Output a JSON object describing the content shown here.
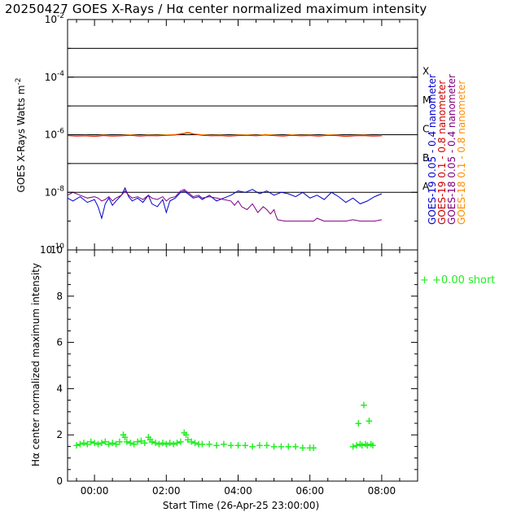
{
  "title": "20250427 GOES X-Rays / Hα center normalized maximum intensity",
  "chart_data": [
    {
      "type": "line",
      "panel": "goes",
      "ylabel": "GOES X-Rays Watts m",
      "ylabel_sup": "-2",
      "yscale": "log",
      "ylim_exp": [
        -10,
        -2
      ],
      "ytick_exponents": [
        -2,
        -4,
        -6,
        -8,
        -10
      ],
      "ytick_base": "10",
      "xlim_hours": [
        -0.75,
        9.0
      ],
      "class_lines_exp": [
        -3,
        -4,
        -5,
        -6,
        -7,
        -8
      ],
      "class_labels": [
        {
          "label": "X",
          "exp": -3.8
        },
        {
          "label": "M",
          "exp": -4.8
        },
        {
          "label": "C",
          "exp": -5.8
        },
        {
          "label": "B",
          "exp": -6.8
        },
        {
          "label": "A",
          "exp": -7.8
        }
      ],
      "legend": [
        {
          "text": "GOES-19 0.05 - 0.4 nanometer",
          "color": "#0000cc"
        },
        {
          "text": "GOES-19 0.1 - 0.8 nanometer",
          "color": "#cc0000"
        },
        {
          "text": "GOES-18 0.05 - 0.4 nanometer",
          "color": "#800080"
        },
        {
          "text": "GOES-18 0.1 - 0.8 nanometer",
          "color": "#ff8c00"
        }
      ],
      "series": [
        {
          "name": "GOES-19 0.1 - 0.8 nanometer",
          "color": "#cc0000",
          "x": [
            -0.75,
            -0.5,
            -0.25,
            0,
            0.25,
            0.5,
            0.75,
            1,
            1.25,
            1.5,
            1.75,
            2,
            2.25,
            2.5,
            2.6,
            2.75,
            3,
            3.25,
            3.5,
            3.75,
            4,
            4.25,
            4.5,
            4.75,
            5,
            5.25,
            5.5,
            5.75,
            6,
            6.25,
            6.5,
            6.75,
            7,
            7.25,
            7.5,
            7.75,
            8
          ],
          "y_exp": [
            -6.03,
            -6.05,
            -6.04,
            -6.06,
            -6.03,
            -6.05,
            -6.04,
            -6.02,
            -6.05,
            -6.03,
            -6.04,
            -6.02,
            -6.01,
            -5.96,
            -5.93,
            -5.98,
            -6.02,
            -6.04,
            -6.03,
            -6.05,
            -6.03,
            -6.02,
            -6.04,
            -6.01,
            -6.03,
            -6.05,
            -6.02,
            -6.04,
            -6.03,
            -6.05,
            -6.02,
            -6.03,
            -6.06,
            -6.04,
            -6.03,
            -6.05,
            -6.04
          ]
        },
        {
          "name": "GOES-18 0.1 - 0.8 nanometer",
          "color": "#ff8c00",
          "x": [
            -0.75,
            -0.5,
            -0.25,
            0,
            0.25,
            0.5,
            0.75,
            1,
            1.25,
            1.5,
            1.75,
            2,
            2.25,
            2.5,
            2.6,
            2.75,
            3,
            3.25,
            3.5,
            3.75,
            4,
            4.25,
            4.5,
            4.75,
            5,
            5.25,
            5.5,
            5.75,
            6,
            6.25,
            6.5,
            6.75,
            7,
            7.25,
            7.5,
            7.75,
            8
          ],
          "y_exp": [
            -6.01,
            -6.03,
            -6.02,
            -6.04,
            -6.01,
            -6.03,
            -6.02,
            -6.0,
            -6.03,
            -6.01,
            -6.02,
            -6.0,
            -5.99,
            -5.94,
            -5.91,
            -5.96,
            -6.0,
            -6.02,
            -6.01,
            -6.03,
            -6.01,
            -6.0,
            -6.02,
            -5.99,
            -6.01,
            -6.03,
            -6.0,
            -6.02,
            -6.01,
            -6.03,
            -6.0,
            -6.01,
            -6.04,
            -6.02,
            -6.01,
            -6.03,
            -6.02
          ]
        },
        {
          "name": "GOES-19 0.05 - 0.4 nanometer",
          "color": "#0000cc",
          "x": [
            -0.75,
            -0.6,
            -0.4,
            -0.2,
            0,
            0.1,
            0.2,
            0.3,
            0.4,
            0.5,
            0.6,
            0.75,
            0.85,
            0.95,
            1.05,
            1.2,
            1.35,
            1.5,
            1.6,
            1.75,
            1.9,
            2.0,
            2.1,
            2.25,
            2.4,
            2.5,
            2.6,
            2.75,
            2.9,
            3.0,
            3.2,
            3.4,
            3.6,
            3.8,
            4.0,
            4.2,
            4.4,
            4.6,
            4.8,
            5.0,
            5.2,
            5.4,
            5.6,
            5.8,
            6.0,
            6.2,
            6.4,
            6.6,
            6.8,
            7.0,
            7.2,
            7.4,
            7.6,
            7.8,
            8.0
          ],
          "y_exp": [
            -8.2,
            -8.3,
            -8.15,
            -8.35,
            -8.25,
            -8.5,
            -8.9,
            -8.4,
            -8.2,
            -8.45,
            -8.3,
            -8.1,
            -7.85,
            -8.15,
            -8.3,
            -8.2,
            -8.35,
            -8.1,
            -8.4,
            -8.5,
            -8.25,
            -8.7,
            -8.3,
            -8.2,
            -8.0,
            -7.95,
            -8.05,
            -8.2,
            -8.15,
            -8.25,
            -8.1,
            -8.3,
            -8.2,
            -8.1,
            -7.95,
            -8.0,
            -7.9,
            -8.05,
            -7.95,
            -8.1,
            -8.0,
            -8.05,
            -8.15,
            -8.0,
            -8.2,
            -8.1,
            -8.25,
            -8.0,
            -8.15,
            -8.35,
            -8.2,
            -8.4,
            -8.3,
            -8.15,
            -8.05
          ]
        },
        {
          "name": "GOES-18 0.05 - 0.4 nanometer",
          "color": "#800080",
          "x": [
            -0.75,
            -0.6,
            -0.4,
            -0.2,
            0,
            0.1,
            0.2,
            0.3,
            0.4,
            0.5,
            0.6,
            0.75,
            0.85,
            0.95,
            1.05,
            1.2,
            1.35,
            1.5,
            1.6,
            1.75,
            1.9,
            2.0,
            2.1,
            2.25,
            2.4,
            2.5,
            2.6,
            2.75,
            2.9,
            3.0,
            3.2,
            3.4,
            3.6,
            3.8,
            3.9,
            4.0,
            4.1,
            4.25,
            4.4,
            4.55,
            4.7,
            4.8,
            4.9,
            5.0,
            5.05,
            5.1,
            5.3,
            5.6,
            5.9,
            6.1,
            6.2,
            6.4,
            6.6,
            6.8,
            7.0,
            7.2,
            7.4,
            7.6,
            7.8,
            8.0
          ],
          "y_exp": [
            -8.1,
            -8.0,
            -8.1,
            -8.2,
            -8.15,
            -8.2,
            -8.3,
            -8.25,
            -8.15,
            -8.3,
            -8.2,
            -8.1,
            -7.95,
            -8.1,
            -8.2,
            -8.15,
            -8.25,
            -8.1,
            -8.2,
            -8.25,
            -8.15,
            -8.3,
            -8.2,
            -8.15,
            -7.95,
            -7.9,
            -8.0,
            -8.15,
            -8.1,
            -8.2,
            -8.15,
            -8.2,
            -8.25,
            -8.3,
            -8.45,
            -8.3,
            -8.5,
            -8.6,
            -8.4,
            -8.7,
            -8.5,
            -8.6,
            -8.75,
            -8.6,
            -8.8,
            -8.95,
            -9.0,
            -9.0,
            -9.0,
            -9.0,
            -8.9,
            -9.0,
            -9.0,
            -9.0,
            -9.0,
            -8.95,
            -9.0,
            -9.0,
            -9.0,
            -8.95
          ]
        }
      ]
    },
    {
      "type": "scatter",
      "panel": "halpha",
      "ylabel": "Hα center normalized maximum intensity",
      "xlabel": "Start Time (26-Apr-25 23:00:00)",
      "ylim": [
        0,
        10
      ],
      "yticks": [
        0,
        2,
        4,
        6,
        8,
        10
      ],
      "xlim_hours": [
        -0.75,
        9.0
      ],
      "xticks": [
        {
          "h": 0,
          "label": "00:00"
        },
        {
          "h": 2,
          "label": "02:00"
        },
        {
          "h": 4,
          "label": "04:00"
        },
        {
          "h": 6,
          "label": "06:00"
        },
        {
          "h": 8,
          "label": "08:00"
        }
      ],
      "legend": {
        "marker": "+",
        "text": "+0.00 short",
        "color": "#22ee22"
      },
      "series": [
        {
          "name": "Hα",
          "color": "#22ee22",
          "x": [
            -0.5,
            -0.4,
            -0.3,
            -0.2,
            -0.1,
            0,
            0.1,
            0.2,
            0.3,
            0.4,
            0.5,
            0.6,
            0.7,
            0.8,
            0.85,
            0.9,
            1.0,
            1.1,
            1.2,
            1.3,
            1.4,
            1.5,
            1.55,
            1.6,
            1.7,
            1.8,
            1.9,
            2.0,
            2.1,
            2.2,
            2.3,
            2.4,
            2.5,
            2.55,
            2.6,
            2.7,
            2.8,
            2.9,
            3.0,
            3.2,
            3.4,
            3.6,
            3.8,
            4.0,
            4.2,
            4.4,
            4.6,
            4.8,
            5.0,
            5.2,
            5.4,
            5.6,
            5.8,
            6.0,
            6.1,
            7.2,
            7.3,
            7.35,
            7.4,
            7.45,
            7.5,
            7.55,
            7.6,
            7.65,
            7.7,
            7.75
          ],
          "y": [
            1.55,
            1.6,
            1.65,
            1.6,
            1.7,
            1.65,
            1.6,
            1.65,
            1.7,
            1.6,
            1.65,
            1.6,
            1.7,
            2.0,
            1.9,
            1.7,
            1.65,
            1.6,
            1.7,
            1.75,
            1.65,
            1.9,
            1.8,
            1.7,
            1.65,
            1.6,
            1.65,
            1.6,
            1.65,
            1.6,
            1.65,
            1.7,
            2.1,
            2.0,
            1.8,
            1.7,
            1.65,
            1.6,
            1.6,
            1.6,
            1.55,
            1.6,
            1.55,
            1.55,
            1.55,
            1.5,
            1.55,
            1.55,
            1.5,
            1.5,
            1.5,
            1.5,
            1.45,
            1.45,
            1.45,
            1.5,
            1.55,
            2.5,
            1.6,
            1.55,
            3.3,
            1.6,
            1.55,
            2.6,
            1.6,
            1.55
          ]
        }
      ]
    }
  ]
}
